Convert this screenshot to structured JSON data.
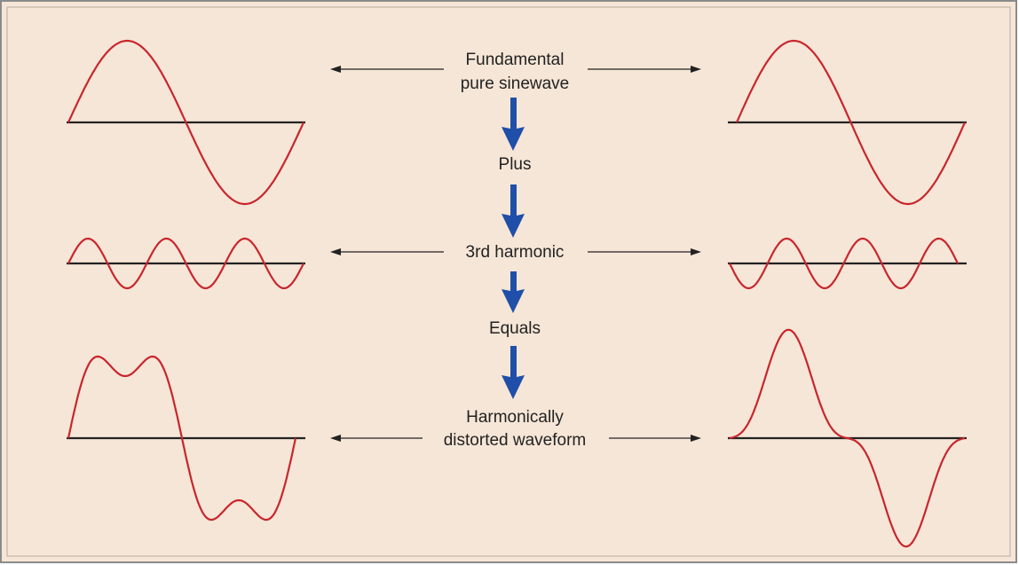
{
  "labels": [
    [
      "Fundamental",
      "pure sinewave"
    ],
    [
      "Plus"
    ],
    [
      "3rd harmonic"
    ],
    [
      "Equals"
    ],
    [
      "Harmonically",
      "distorted waveform"
    ]
  ]
}
